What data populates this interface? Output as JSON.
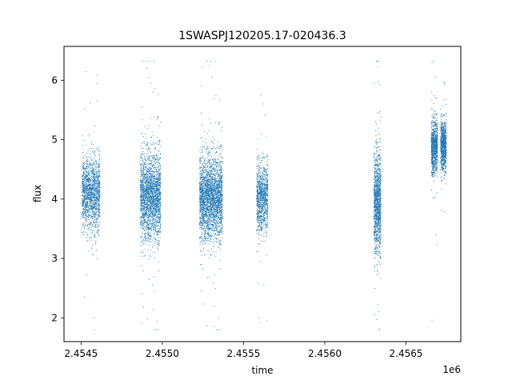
{
  "chart_data": {
    "type": "scatter",
    "title": "1SWASPJ120205.17-020436.3",
    "xlabel": "time",
    "ylabel": "flux",
    "x_offset_label": "1e6",
    "xlim": [
      2454395,
      2456837
    ],
    "ylim": [
      1.6,
      6.57
    ],
    "x_ticks": [
      2454500,
      2455000,
      2455500,
      2456000,
      2456500
    ],
    "x_tick_labels": [
      "2.4545",
      "2.4550",
      "2.4555",
      "2.4560",
      "2.4565"
    ],
    "y_ticks": [
      2,
      3,
      4,
      5,
      6
    ],
    "y_tick_labels": [
      "2",
      "3",
      "4",
      "5",
      "6"
    ],
    "grid": false,
    "marker_color": "#1f77b4",
    "clusters": [
      {
        "x_range": [
          2454506,
          2454616
        ],
        "flux_center": 4.08,
        "flux_spread": 0.55,
        "count": 1500
      },
      {
        "x_range": [
          2454865,
          2454990
        ],
        "flux_center": 4.05,
        "flux_spread": 0.65,
        "count": 2200
      },
      {
        "x_range": [
          2455229,
          2455370
        ],
        "flux_center": 4.02,
        "flux_spread": 0.62,
        "count": 2600
      },
      {
        "x_range": [
          2455580,
          2455650
        ],
        "flux_center": 4.02,
        "flux_spread": 0.5,
        "count": 1000
      },
      {
        "x_range": [
          2456303,
          2456345
        ],
        "flux_center": 3.95,
        "flux_spread": 0.75,
        "count": 1200
      },
      {
        "x_range": [
          2456655,
          2456694
        ],
        "flux_center": 4.88,
        "flux_spread": 0.4,
        "count": 900
      },
      {
        "x_range": [
          2456713,
          2456748
        ],
        "flux_center": 4.9,
        "flux_spread": 0.38,
        "count": 800
      }
    ],
    "outliers": [
      [
        2454530,
        6.15
      ],
      [
        2454600,
        6.08
      ],
      [
        2454598,
        5.65
      ],
      [
        2454580,
        2.0
      ],
      [
        2454520,
        2.35
      ],
      [
        2454905,
        6.2
      ],
      [
        2454918,
        6.05
      ],
      [
        2454930,
        5.95
      ],
      [
        2454870,
        1.92
      ],
      [
        2454910,
        1.98
      ],
      [
        2455290,
        6.25
      ],
      [
        2455305,
        6.05
      ],
      [
        2455240,
        5.9
      ],
      [
        2455275,
        1.87
      ],
      [
        2455320,
        1.85
      ],
      [
        2455605,
        5.75
      ],
      [
        2455620,
        5.6
      ],
      [
        2455595,
        2.0
      ],
      [
        2455598,
        1.92
      ],
      [
        2456325,
        6.22
      ],
      [
        2456305,
        5.95
      ],
      [
        2456318,
        1.97
      ],
      [
        2456670,
        6.32
      ],
      [
        2456680,
        6.05
      ],
      [
        2456735,
        5.97
      ],
      [
        2456660,
        1.96
      ]
    ]
  }
}
